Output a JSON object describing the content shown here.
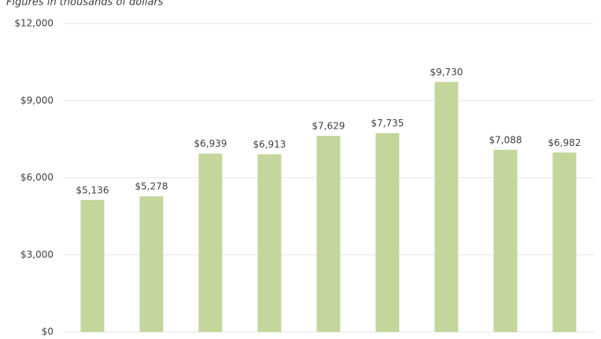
{
  "chart_data": {
    "type": "bar",
    "subtitle": "Figures in thousands of dollars",
    "categories": [
      null,
      null,
      null,
      null,
      null,
      null,
      null,
      null,
      null
    ],
    "values": [
      5136,
      5278,
      6939,
      6913,
      7629,
      7735,
      9730,
      7088,
      6982
    ],
    "value_labels": [
      "$5,136",
      "$5,278",
      "$6,939",
      "$6,913",
      "$7,629",
      "$7,735",
      "$9,730",
      "$7,088",
      "$6,982"
    ],
    "color": "#c3d69b",
    "ylim": [
      0,
      12000
    ],
    "yticks": [
      {
        "value": 0,
        "label": "$0"
      },
      {
        "value": 3000,
        "label": "$3,000"
      },
      {
        "value": 6000,
        "label": "$6,000"
      },
      {
        "value": 9000,
        "label": "$9,000"
      },
      {
        "value": 12000,
        "label": "$12,000"
      }
    ],
    "grid": true
  }
}
